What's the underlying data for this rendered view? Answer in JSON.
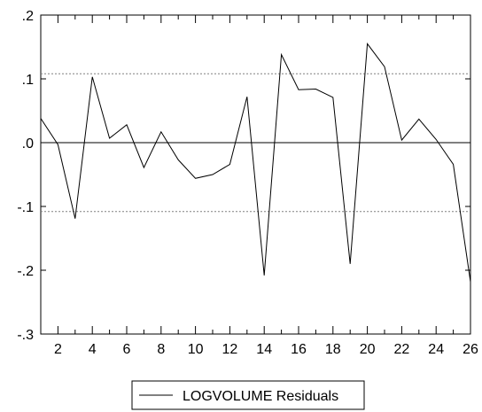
{
  "chart_data": {
    "type": "line",
    "title": "",
    "xlabel": "",
    "ylabel": "",
    "x": [
      1,
      2,
      3,
      4,
      5,
      6,
      7,
      8,
      9,
      10,
      11,
      12,
      13,
      14,
      15,
      16,
      17,
      18,
      19,
      20,
      21,
      22,
      23,
      24,
      25,
      26
    ],
    "x_ticks": [
      "2",
      "4",
      "6",
      "8",
      "10",
      "12",
      "14",
      "16",
      "18",
      "20",
      "22",
      "24",
      "26"
    ],
    "x_tick_values": [
      2,
      4,
      6,
      8,
      10,
      12,
      14,
      16,
      18,
      20,
      22,
      24,
      26
    ],
    "xlim": [
      1,
      26
    ],
    "ylim": [
      -0.3,
      0.2
    ],
    "y_ticks": [
      ".2",
      ".1",
      ".0",
      "-.1",
      "-.2",
      "-.3"
    ],
    "y_tick_values": [
      0.2,
      0.1,
      0.0,
      -0.1,
      -0.2,
      -0.3
    ],
    "zero_line": 0.0,
    "reference_lines": [
      0.108,
      -0.108
    ],
    "series": [
      {
        "name": "LOGVOLUME Residuals",
        "color": "#000000",
        "values": [
          0.038,
          -0.003,
          -0.119,
          0.103,
          0.007,
          0.028,
          -0.039,
          0.017,
          -0.027,
          -0.056,
          -0.05,
          -0.034,
          0.072,
          -0.208,
          0.138,
          0.083,
          0.084,
          0.071,
          -0.19,
          0.155,
          0.119,
          0.004,
          0.037,
          0.005,
          -0.034,
          -0.218
        ]
      }
    ],
    "legend": {
      "position": "bottom-center",
      "entries": [
        "LOGVOLUME Residuals"
      ]
    },
    "grid": false
  }
}
